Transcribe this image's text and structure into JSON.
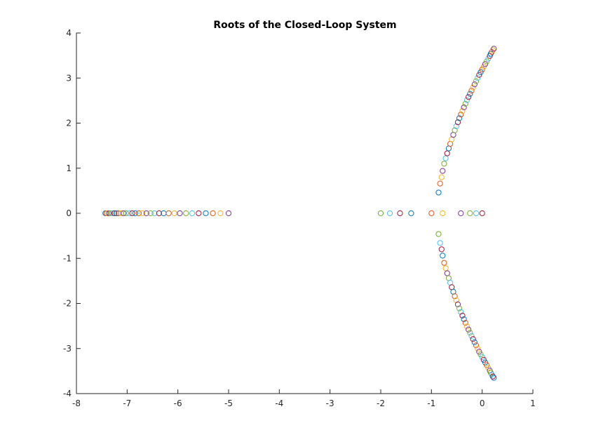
{
  "chart_data": {
    "type": "scatter",
    "title": "Roots of the Closed-Loop System",
    "xlabel": "",
    "ylabel": "",
    "xlim": [
      -8,
      1
    ],
    "ylim": [
      -4,
      4
    ],
    "xticks": [
      -8,
      -7,
      -6,
      -5,
      -4,
      -3,
      -2,
      -1,
      0,
      1
    ],
    "yticks": [
      -4,
      -3,
      -2,
      -1,
      0,
      1,
      2,
      3,
      4
    ],
    "grid": false,
    "legend": "none",
    "marker": "open-circle",
    "colors": [
      "#0072BD",
      "#D95319",
      "#EDB120",
      "#7E2F8E",
      "#77AC30",
      "#4DBEEE",
      "#A2142F"
    ],
    "points": [
      {
        "x": -7.43,
        "y": 0
      },
      {
        "x": -7.41,
        "y": 0
      },
      {
        "x": -7.39,
        "y": 0
      },
      {
        "x": -7.36,
        "y": 0
      },
      {
        "x": -7.33,
        "y": 0
      },
      {
        "x": -7.29,
        "y": 0
      },
      {
        "x": -7.25,
        "y": 0
      },
      {
        "x": -7.21,
        "y": 0
      },
      {
        "x": -7.17,
        "y": 0
      },
      {
        "x": -7.12,
        "y": 0
      },
      {
        "x": -7.07,
        "y": 0
      },
      {
        "x": -7.02,
        "y": 0
      },
      {
        "x": -6.96,
        "y": 0
      },
      {
        "x": -6.9,
        "y": 0
      },
      {
        "x": -6.84,
        "y": 0
      },
      {
        "x": -6.77,
        "y": 0
      },
      {
        "x": -6.7,
        "y": 0
      },
      {
        "x": -6.62,
        "y": 0
      },
      {
        "x": -6.54,
        "y": 0
      },
      {
        "x": -6.46,
        "y": 0
      },
      {
        "x": -6.37,
        "y": 0
      },
      {
        "x": -6.28,
        "y": 0
      },
      {
        "x": -6.18,
        "y": 0
      },
      {
        "x": -6.07,
        "y": 0
      },
      {
        "x": -5.96,
        "y": 0
      },
      {
        "x": -5.84,
        "y": 0
      },
      {
        "x": -5.72,
        "y": 0
      },
      {
        "x": -5.59,
        "y": 0
      },
      {
        "x": -5.45,
        "y": 0
      },
      {
        "x": -5.31,
        "y": 0
      },
      {
        "x": -5.16,
        "y": 0
      },
      {
        "x": -5.0,
        "y": 0
      },
      {
        "x": -2.0,
        "y": 0
      },
      {
        "x": -1.82,
        "y": 0
      },
      {
        "x": -1.62,
        "y": 0
      },
      {
        "x": -1.4,
        "y": 0
      },
      {
        "x": -1.0,
        "y": 0
      },
      {
        "x": -0.78,
        "y": 0
      },
      {
        "x": -0.42,
        "y": 0
      },
      {
        "x": -0.24,
        "y": 0
      },
      {
        "x": -0.12,
        "y": 0
      },
      {
        "x": 0.0,
        "y": 0
      },
      {
        "x": -0.86,
        "y": 0.46
      },
      {
        "x": -0.83,
        "y": 0.66
      },
      {
        "x": -0.8,
        "y": 0.8
      },
      {
        "x": -0.78,
        "y": 0.94
      },
      {
        "x": -0.75,
        "y": 1.1
      },
      {
        "x": -0.72,
        "y": 1.22
      },
      {
        "x": -0.69,
        "y": 1.33
      },
      {
        "x": -0.66,
        "y": 1.44
      },
      {
        "x": -0.63,
        "y": 1.54
      },
      {
        "x": -0.6,
        "y": 1.64
      },
      {
        "x": -0.57,
        "y": 1.74
      },
      {
        "x": -0.54,
        "y": 1.84
      },
      {
        "x": -0.51,
        "y": 1.93
      },
      {
        "x": -0.48,
        "y": 2.02
      },
      {
        "x": -0.45,
        "y": 2.11
      },
      {
        "x": -0.42,
        "y": 2.19
      },
      {
        "x": -0.39,
        "y": 2.27
      },
      {
        "x": -0.36,
        "y": 2.35
      },
      {
        "x": -0.33,
        "y": 2.43
      },
      {
        "x": -0.3,
        "y": 2.51
      },
      {
        "x": -0.27,
        "y": 2.58
      },
      {
        "x": -0.24,
        "y": 2.65
      },
      {
        "x": -0.21,
        "y": 2.72
      },
      {
        "x": -0.18,
        "y": 2.79
      },
      {
        "x": -0.15,
        "y": 2.86
      },
      {
        "x": -0.12,
        "y": 2.93
      },
      {
        "x": -0.09,
        "y": 3.0
      },
      {
        "x": -0.06,
        "y": 3.07
      },
      {
        "x": -0.03,
        "y": 3.13
      },
      {
        "x": 0.0,
        "y": 3.19
      },
      {
        "x": 0.03,
        "y": 3.25
      },
      {
        "x": 0.06,
        "y": 3.31
      },
      {
        "x": 0.09,
        "y": 3.37
      },
      {
        "x": 0.12,
        "y": 3.43
      },
      {
        "x": 0.15,
        "y": 3.49
      },
      {
        "x": 0.17,
        "y": 3.54
      },
      {
        "x": 0.19,
        "y": 3.58
      },
      {
        "x": 0.21,
        "y": 3.62
      },
      {
        "x": 0.23,
        "y": 3.65
      },
      {
        "x": -0.86,
        "y": -0.46
      },
      {
        "x": -0.83,
        "y": -0.66
      },
      {
        "x": -0.8,
        "y": -0.8
      },
      {
        "x": -0.78,
        "y": -0.94
      },
      {
        "x": -0.75,
        "y": -1.1
      },
      {
        "x": -0.72,
        "y": -1.22
      },
      {
        "x": -0.69,
        "y": -1.33
      },
      {
        "x": -0.66,
        "y": -1.44
      },
      {
        "x": -0.63,
        "y": -1.54
      },
      {
        "x": -0.6,
        "y": -1.64
      },
      {
        "x": -0.57,
        "y": -1.74
      },
      {
        "x": -0.54,
        "y": -1.84
      },
      {
        "x": -0.51,
        "y": -1.93
      },
      {
        "x": -0.48,
        "y": -2.02
      },
      {
        "x": -0.45,
        "y": -2.11
      },
      {
        "x": -0.42,
        "y": -2.19
      },
      {
        "x": -0.39,
        "y": -2.27
      },
      {
        "x": -0.36,
        "y": -2.35
      },
      {
        "x": -0.33,
        "y": -2.43
      },
      {
        "x": -0.3,
        "y": -2.51
      },
      {
        "x": -0.27,
        "y": -2.58
      },
      {
        "x": -0.24,
        "y": -2.65
      },
      {
        "x": -0.21,
        "y": -2.72
      },
      {
        "x": -0.18,
        "y": -2.79
      },
      {
        "x": -0.15,
        "y": -2.86
      },
      {
        "x": -0.12,
        "y": -2.93
      },
      {
        "x": -0.09,
        "y": -3.0
      },
      {
        "x": -0.06,
        "y": -3.07
      },
      {
        "x": -0.03,
        "y": -3.13
      },
      {
        "x": 0.0,
        "y": -3.19
      },
      {
        "x": 0.03,
        "y": -3.25
      },
      {
        "x": 0.06,
        "y": -3.31
      },
      {
        "x": 0.09,
        "y": -3.37
      },
      {
        "x": 0.12,
        "y": -3.43
      },
      {
        "x": 0.15,
        "y": -3.49
      },
      {
        "x": 0.17,
        "y": -3.54
      },
      {
        "x": 0.19,
        "y": -3.58
      },
      {
        "x": 0.21,
        "y": -3.62
      },
      {
        "x": 0.23,
        "y": -3.65
      }
    ]
  }
}
